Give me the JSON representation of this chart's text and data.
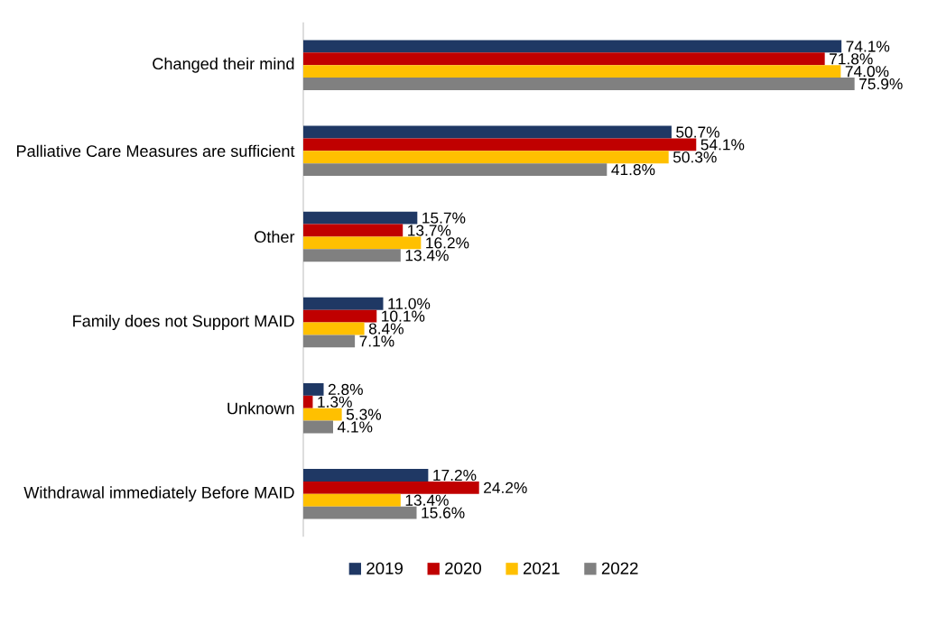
{
  "chart_data": {
    "type": "bar",
    "orientation": "horizontal",
    "categories": [
      "Changed their mind",
      "Palliative Care Measures are sufficient",
      "Other",
      "Family does not Support MAID",
      "Unknown",
      "Withdrawal immediately Before MAID"
    ],
    "series": [
      {
        "name": "2019",
        "color": "#1f3864",
        "values": [
          74.1,
          50.7,
          15.7,
          11.0,
          2.8,
          17.2
        ],
        "value_labels": [
          "74.1%",
          "50.7%",
          "15.7%",
          "11.0%",
          "2.8%",
          "17.2%"
        ]
      },
      {
        "name": "2020",
        "color": "#c00000",
        "values": [
          71.8,
          54.1,
          13.7,
          10.1,
          1.3,
          24.2
        ],
        "value_labels": [
          "71.8%",
          "54.1%",
          "13.7%",
          "10.1%",
          "1.3%",
          "24.2%"
        ]
      },
      {
        "name": "2021",
        "color": "#ffc000",
        "values": [
          74.0,
          50.3,
          16.2,
          8.4,
          5.3,
          13.4
        ],
        "value_labels": [
          "74.0%",
          "50.3%",
          "16.2%",
          "8.4%",
          "5.3%",
          "13.4%"
        ]
      },
      {
        "name": "2022",
        "color": "#808080",
        "values": [
          75.9,
          41.8,
          13.4,
          7.1,
          4.1,
          15.6
        ],
        "value_labels": [
          "75.9%",
          "41.8%",
          "13.4%",
          "7.1%",
          "4.1%",
          "15.6%"
        ]
      }
    ],
    "tick_labels": "y",
    "legend": "bottom"
  }
}
